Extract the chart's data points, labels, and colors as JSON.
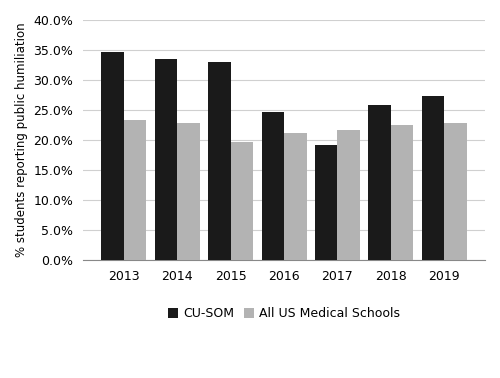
{
  "years": [
    "2013",
    "2014",
    "2015",
    "2016",
    "2017",
    "2018",
    "2019"
  ],
  "cusom": [
    0.347,
    0.335,
    0.33,
    0.247,
    0.192,
    0.258,
    0.273
  ],
  "allus": [
    0.234,
    0.228,
    0.196,
    0.212,
    0.217,
    0.225,
    0.229
  ],
  "cusom_color": "#1a1a1a",
  "allus_color": "#b3b3b3",
  "ylabel": "% students reporting public humiliation",
  "ylim": [
    0,
    0.4
  ],
  "yticks": [
    0.0,
    0.05,
    0.1,
    0.15,
    0.2,
    0.25,
    0.3,
    0.35,
    0.4
  ],
  "legend_cusom": "CU-SOM",
  "legend_allus": "All US Medical Schools",
  "bar_width": 0.42,
  "background_color": "#ffffff",
  "grid_color": "#d0d0d0",
  "tick_fontsize": 9,
  "ylabel_fontsize": 8.5,
  "legend_fontsize": 9
}
